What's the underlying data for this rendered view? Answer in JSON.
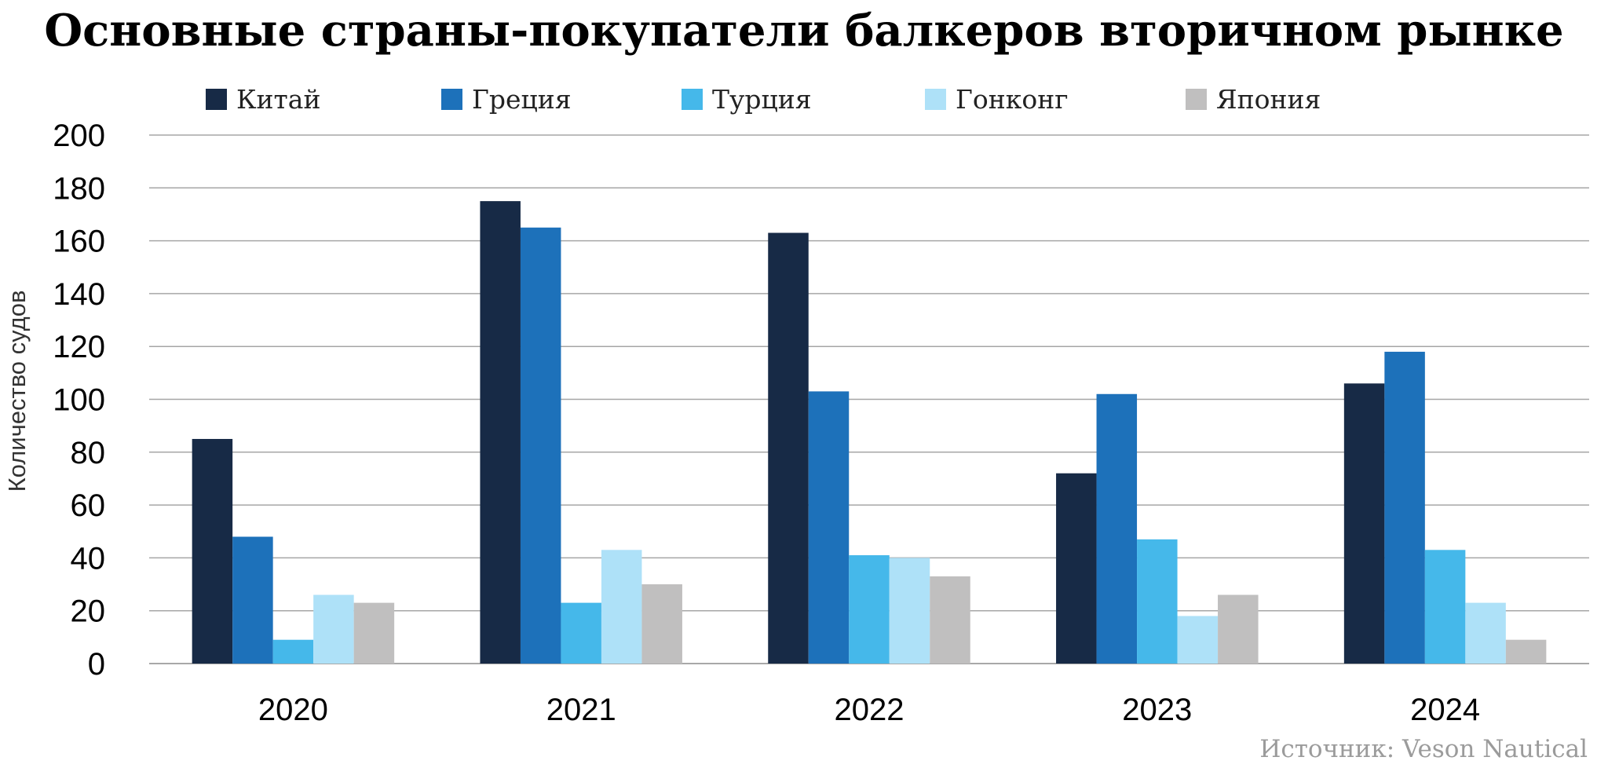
{
  "chart_data": {
    "type": "bar",
    "title": "Основные страны-покупатели балкеров вторичном рынке",
    "xlabel": "",
    "ylabel": "Количество судов",
    "categories": [
      "2020",
      "2021",
      "2022",
      "2023",
      "2024"
    ],
    "ylim": [
      0,
      200
    ],
    "yticks": [
      0,
      20,
      40,
      60,
      80,
      100,
      120,
      140,
      160,
      180,
      200
    ],
    "grid": true,
    "legend_position": "top",
    "series": [
      {
        "name": "Китай",
        "color": "#172a46",
        "values": [
          85,
          175,
          163,
          72,
          106
        ]
      },
      {
        "name": "Греция",
        "color": "#1d71ba",
        "values": [
          48,
          165,
          103,
          102,
          118
        ]
      },
      {
        "name": "Турция",
        "color": "#45b8ea",
        "values": [
          9,
          23,
          41,
          47,
          43
        ]
      },
      {
        "name": "Гонконг",
        "color": "#aee1f8",
        "values": [
          26,
          43,
          40,
          18,
          23
        ]
      },
      {
        "name": "Япония",
        "color": "#c0bfbf",
        "values": [
          23,
          30,
          33,
          26,
          9
        ]
      }
    ]
  },
  "source": "Источник: Veson Nautical"
}
